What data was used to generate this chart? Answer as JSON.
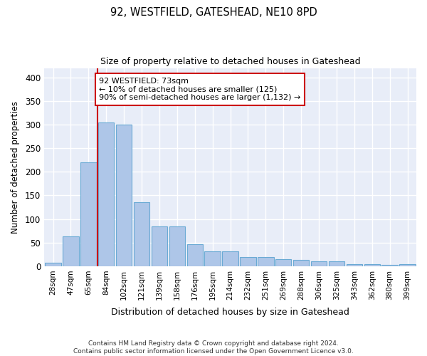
{
  "title": "92, WESTFIELD, GATESHEAD, NE10 8PD",
  "subtitle": "Size of property relative to detached houses in Gateshead",
  "xlabel": "Distribution of detached houses by size in Gateshead",
  "ylabel": "Number of detached properties",
  "categories": [
    "28sqm",
    "47sqm",
    "65sqm",
    "84sqm",
    "102sqm",
    "121sqm",
    "139sqm",
    "158sqm",
    "176sqm",
    "195sqm",
    "214sqm",
    "232sqm",
    "251sqm",
    "269sqm",
    "288sqm",
    "306sqm",
    "325sqm",
    "343sqm",
    "362sqm",
    "380sqm",
    "399sqm"
  ],
  "values": [
    8,
    63,
    220,
    305,
    300,
    136,
    85,
    85,
    46,
    31,
    32,
    20,
    20,
    15,
    14,
    11,
    10,
    5,
    5,
    3,
    5
  ],
  "bar_color": "#aec6e8",
  "bar_edge_color": "#6aaad4",
  "vline_color": "#cc0000",
  "annotation_text": "92 WESTFIELD: 73sqm\n← 10% of detached houses are smaller (125)\n90% of semi-detached houses are larger (1,132) →",
  "annotation_box_color": "#ffffff",
  "annotation_box_edge_color": "#cc0000",
  "ylim": [
    0,
    420
  ],
  "yticks": [
    0,
    50,
    100,
    150,
    200,
    250,
    300,
    350,
    400
  ],
  "background_color": "#e8edf8",
  "grid_color": "#ffffff",
  "footer": "Contains HM Land Registry data © Crown copyright and database right 2024.\nContains public sector information licensed under the Open Government Licence v3.0."
}
